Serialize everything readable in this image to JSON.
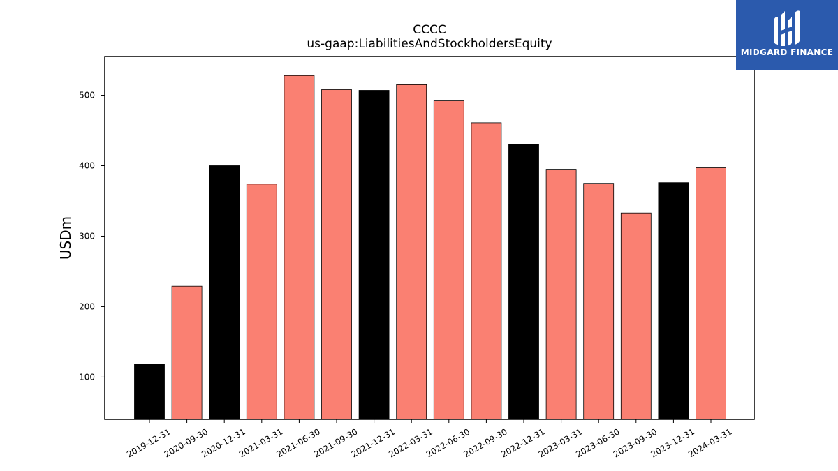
{
  "brand": {
    "name": "MIDGARD FINANCE",
    "background_color": "#2b5aad",
    "icon": "midgard-logo-icon"
  },
  "chart_data": {
    "type": "bar",
    "title": "CCCC",
    "subtitle": "us-gaap:LiabilitiesAndStockholdersEquity",
    "xlabel": "",
    "ylabel": "USDm",
    "ylim": [
      40,
      555
    ],
    "yticks": [
      100,
      200,
      300,
      400,
      500
    ],
    "grid": false,
    "categories": [
      "2019-12-31",
      "2020-09-30",
      "2020-12-31",
      "2021-03-31",
      "2021-06-30",
      "2021-09-30",
      "2021-12-31",
      "2022-03-31",
      "2022-06-30",
      "2022-09-30",
      "2022-12-31",
      "2023-03-31",
      "2023-06-30",
      "2023-09-30",
      "2023-12-31",
      "2024-03-31"
    ],
    "values": [
      118,
      229,
      400,
      374,
      528,
      508,
      507,
      515,
      492,
      461,
      430,
      395,
      375,
      333,
      376,
      397
    ],
    "bar_colors": [
      "#000000",
      "#fa8072",
      "#000000",
      "#fa8072",
      "#fa8072",
      "#fa8072",
      "#000000",
      "#fa8072",
      "#fa8072",
      "#fa8072",
      "#000000",
      "#fa8072",
      "#fa8072",
      "#fa8072",
      "#000000",
      "#fa8072"
    ],
    "colors": {
      "annual": "#000000",
      "quarterly": "#fa8072",
      "edge": "#000000"
    }
  }
}
